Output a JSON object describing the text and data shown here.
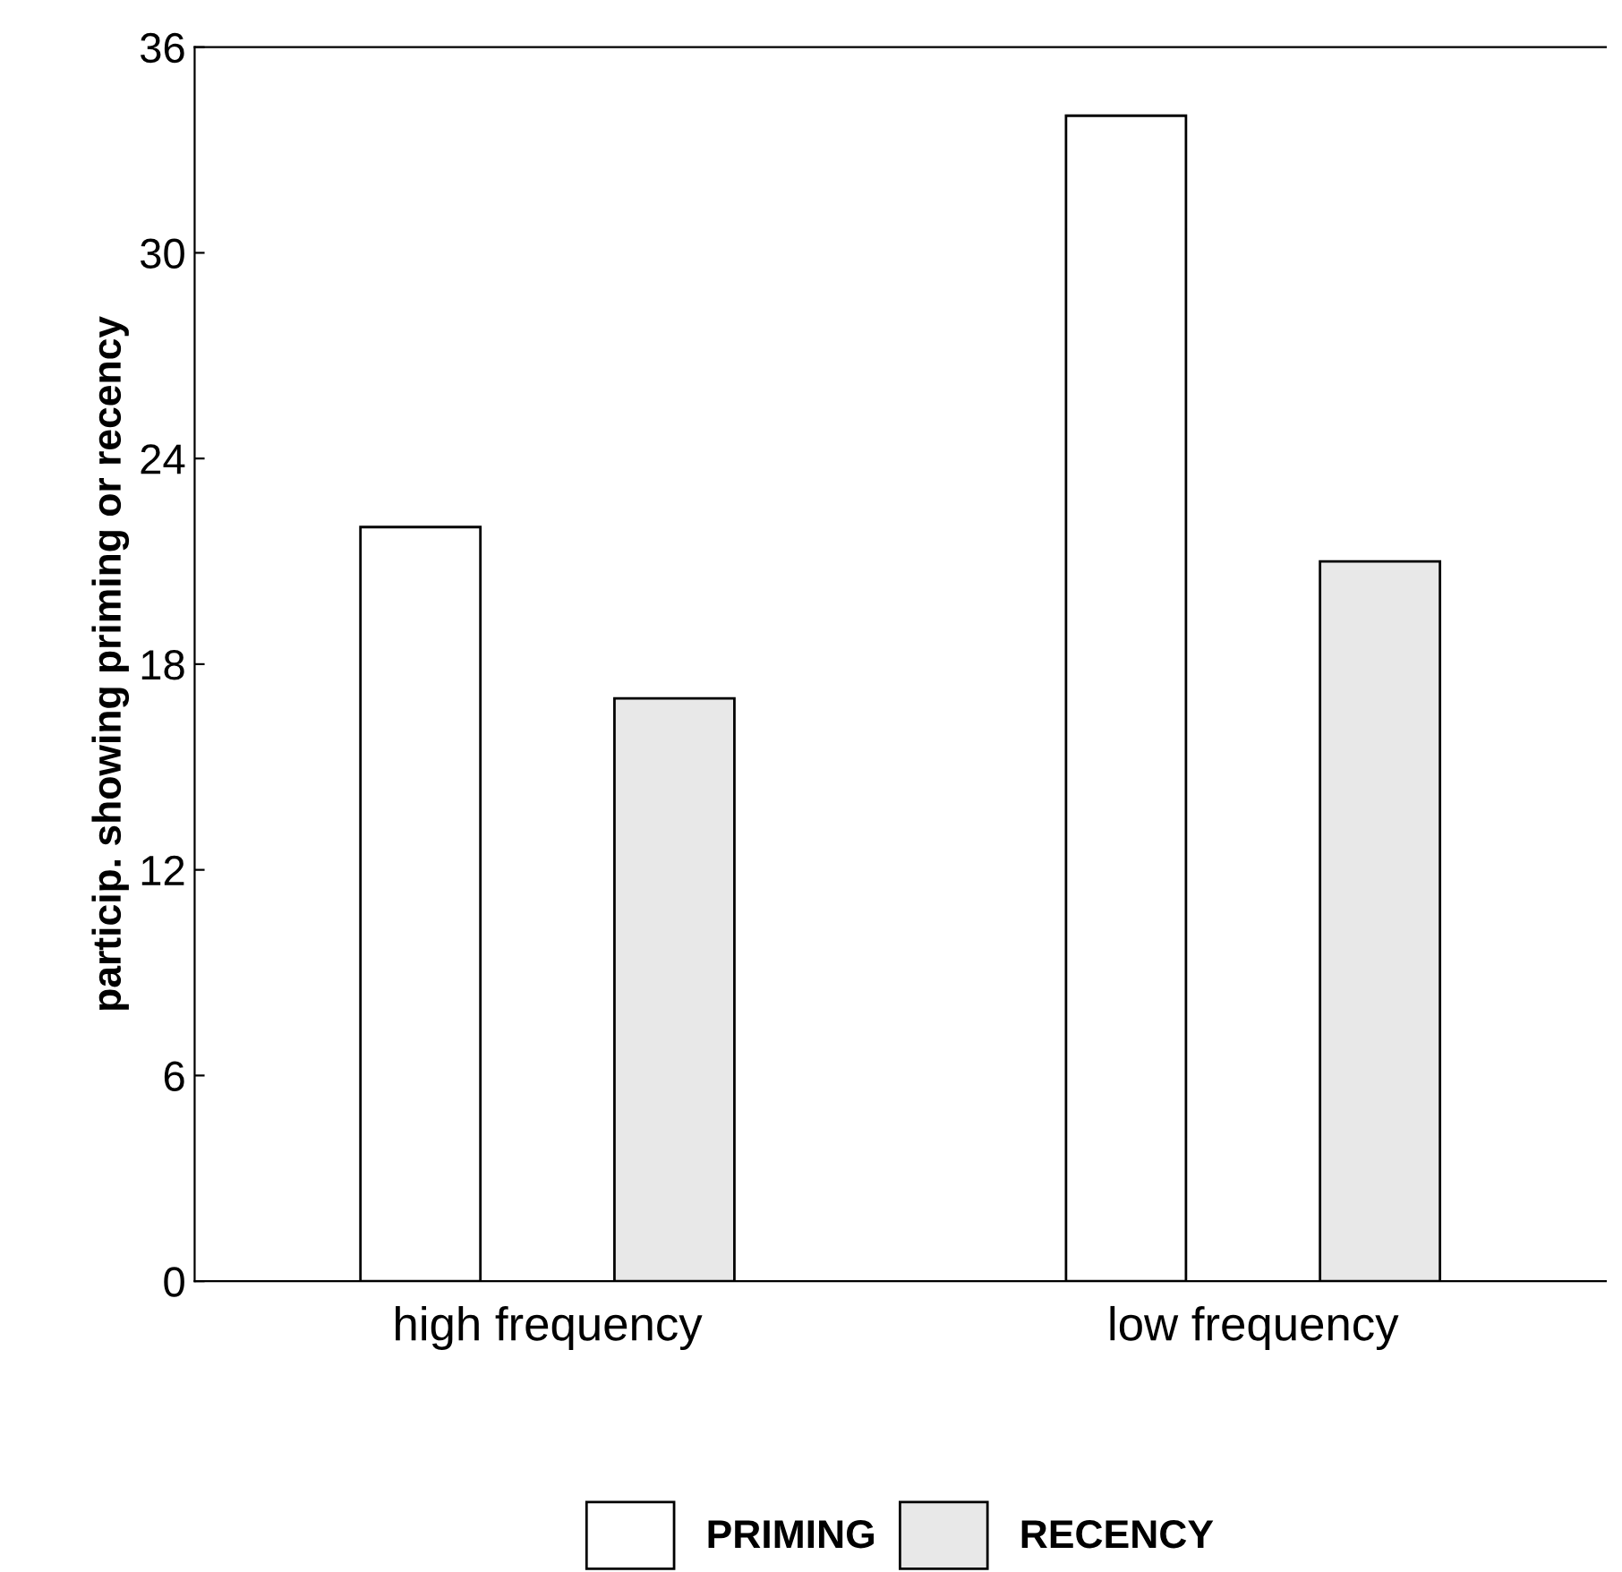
{
  "chart_data": {
    "type": "bar",
    "ylabel": "particip. showing priming or recency",
    "categories": [
      "high frequency",
      "low frequency"
    ],
    "series": [
      {
        "name": "PRIMING",
        "color": "#ffffff",
        "values": [
          22,
          34
        ]
      },
      {
        "name": "RECENCY",
        "color": "#e8e8e8",
        "values": [
          17,
          21
        ]
      }
    ],
    "ylim": [
      0,
      36
    ],
    "yticks": [
      0,
      6,
      12,
      18,
      24,
      30,
      36
    ],
    "grid": false,
    "legend": "bottom"
  }
}
